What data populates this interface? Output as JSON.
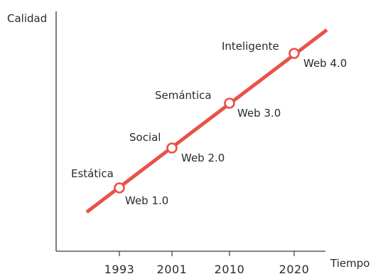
{
  "chart_data": {
    "type": "line",
    "title": "",
    "xlabel": "Tiempo",
    "ylabel": "Calidad",
    "x_ticks": [
      "1993",
      "2001",
      "2010",
      "2020"
    ],
    "series": [
      {
        "points": [
          {
            "x": "1993",
            "label": "Estática",
            "version": "Web 1.0"
          },
          {
            "x": "2001",
            "label": "Social",
            "version": "Web 2.0"
          },
          {
            "x": "2010",
            "label": "Semántica",
            "version": "Web 3.0"
          },
          {
            "x": "2020",
            "label": "Inteligente",
            "version": "Web 4.0"
          }
        ]
      }
    ],
    "colors": {
      "line": "#e8524a",
      "marker_fill": "#ffffff",
      "axis": "#3a3a3a"
    },
    "grid": false,
    "legend": "none"
  }
}
